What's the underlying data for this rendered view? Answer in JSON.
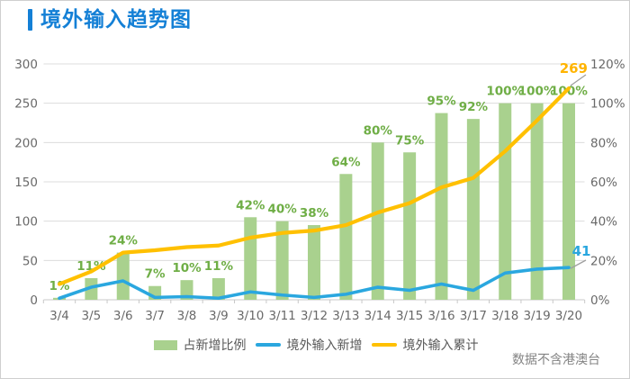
{
  "header": {
    "title": "境外输入趋势图"
  },
  "footer": {
    "note": "数据不含港澳台"
  },
  "palette": {
    "title_blue": "#1480d6",
    "bar_green": "#a9d18e",
    "bar_label_green": "#6fae46",
    "line_blue": "#2aa7df",
    "line_yellow": "#ffc000",
    "yellow_label": "#ffb400",
    "grid": "#dcdcdc",
    "axis_line": "#c8c8c8",
    "axis_text": "#696969",
    "leader": "#9e9e9e"
  },
  "chart_data": {
    "type": "combo-bar-line",
    "title": "境外输入趋势图",
    "grid": "horizontal",
    "categories": [
      "3/4",
      "3/5",
      "3/6",
      "3/7",
      "3/8",
      "3/9",
      "3/10",
      "3/11",
      "3/12",
      "3/13",
      "3/14",
      "3/15",
      "3/16",
      "3/17",
      "3/18",
      "3/19",
      "3/20"
    ],
    "series": [
      {
        "name": "占新增比例",
        "type": "bar",
        "axis": "right",
        "unit": "%",
        "values": [
          1,
          11,
          24,
          7,
          10,
          11,
          42,
          40,
          38,
          64,
          80,
          75,
          95,
          92,
          100,
          100,
          100
        ],
        "labels": [
          "1%",
          "11%",
          "24%",
          "7%",
          "10%",
          "11%",
          "42%",
          "40%",
          "38%",
          "64%",
          "80%",
          "75%",
          "95%",
          "92%",
          "100%",
          "100%",
          "100%"
        ]
      },
      {
        "name": "境外输入新增",
        "type": "line",
        "axis": "left",
        "values": [
          2,
          16,
          24,
          3,
          4,
          2,
          10,
          6,
          3,
          7,
          16,
          12,
          20,
          12,
          34,
          39,
          41
        ],
        "end_label": "41"
      },
      {
        "name": "境外输入累计",
        "type": "line",
        "axis": "left",
        "values": [
          20,
          36,
          60,
          63,
          67,
          69,
          79,
          85,
          88,
          95,
          111,
          123,
          143,
          155,
          189,
          228,
          269
        ],
        "end_label": "269"
      }
    ],
    "left_axis": {
      "range": [
        0,
        300
      ],
      "ticks": [
        "0",
        "50",
        "100",
        "150",
        "200",
        "250",
        "300"
      ],
      "tick_values": [
        0,
        50,
        100,
        150,
        200,
        250,
        300
      ]
    },
    "right_axis": {
      "range": [
        0,
        120
      ],
      "ticks": [
        "0%",
        "20%",
        "40%",
        "60%",
        "80%",
        "100%",
        "120%"
      ]
    },
    "legend": {
      "position": "bottom",
      "items": [
        "占新增比例",
        "境外输入新增",
        "境外输入累计"
      ]
    }
  }
}
